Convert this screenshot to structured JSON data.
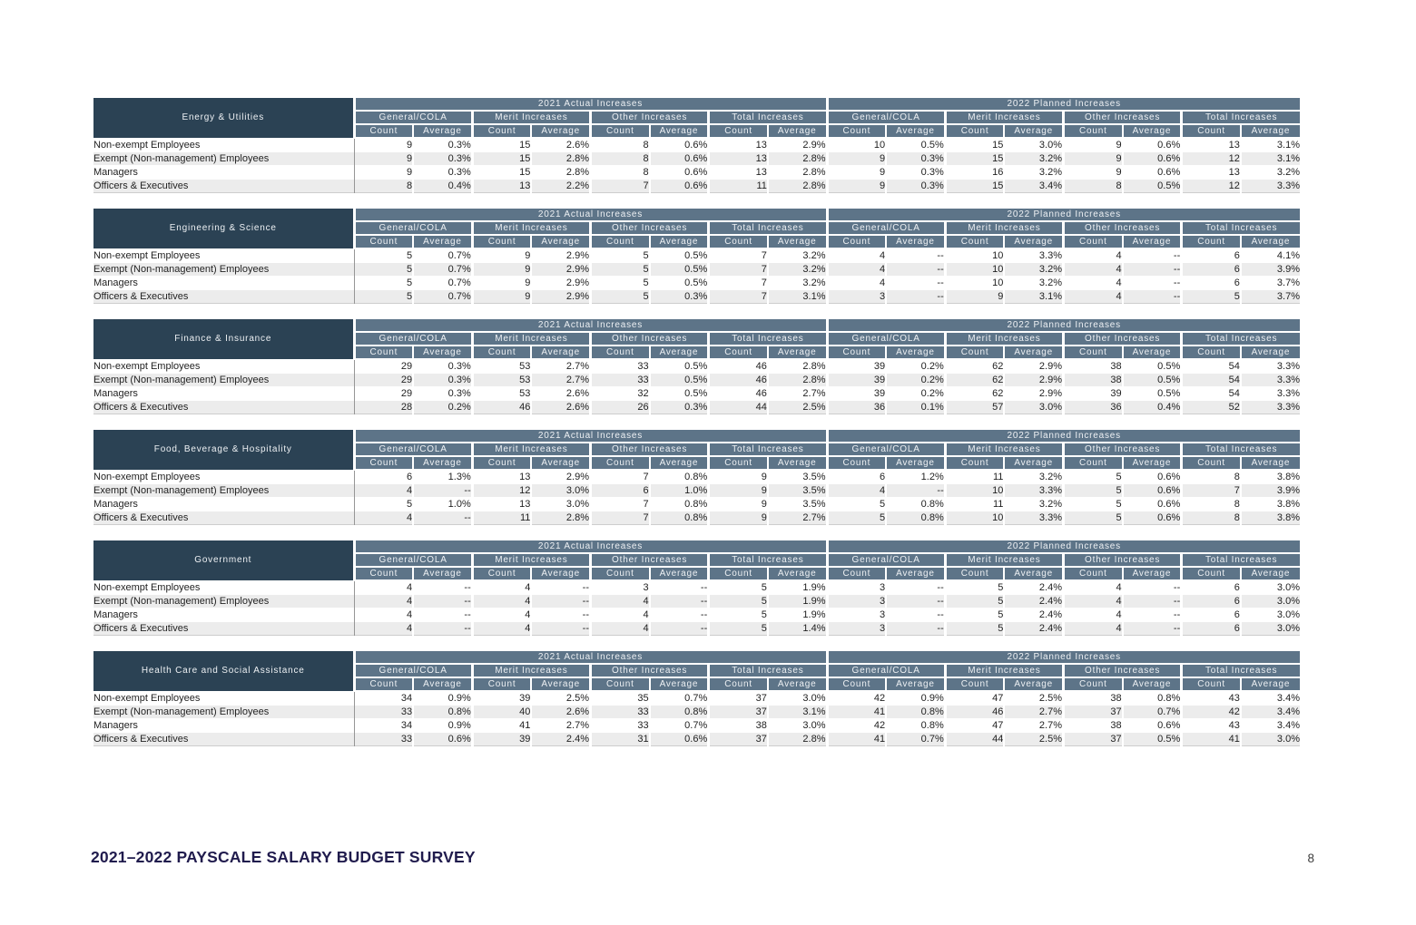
{
  "colors": {
    "industry_header_bg": "#2b4254",
    "column_header_bg": "#5d7488",
    "stripe_row_bg": "#ececec",
    "footer_title_color": "#201b4d"
  },
  "header_labels": {
    "year_groups": [
      "2021 Actual Increases",
      "2022 Planned Increases"
    ],
    "increase_groups": [
      "General/COLA",
      "Merit Increases",
      "Other Increases",
      "Total Increases"
    ],
    "metrics": [
      "Count",
      "Average"
    ]
  },
  "row_labels": [
    "Non-exempt Employees",
    "Exempt (Non-management) Employees",
    "Managers",
    "Officers & Executives"
  ],
  "tables": [
    {
      "industry": "Energy & Utilities",
      "rows": [
        [
          "9",
          "0.3%",
          "15",
          "2.6%",
          "8",
          "0.6%",
          "13",
          "2.9%",
          "10",
          "0.5%",
          "15",
          "3.0%",
          "9",
          "0.6%",
          "13",
          "3.1%"
        ],
        [
          "9",
          "0.3%",
          "15",
          "2.8%",
          "8",
          "0.6%",
          "13",
          "2.8%",
          "9",
          "0.3%",
          "15",
          "3.2%",
          "9",
          "0.6%",
          "12",
          "3.1%"
        ],
        [
          "9",
          "0.3%",
          "15",
          "2.8%",
          "8",
          "0.6%",
          "13",
          "2.8%",
          "9",
          "0.3%",
          "16",
          "3.2%",
          "9",
          "0.6%",
          "13",
          "3.2%"
        ],
        [
          "8",
          "0.4%",
          "13",
          "2.2%",
          "7",
          "0.6%",
          "11",
          "2.8%",
          "9",
          "0.3%",
          "15",
          "3.4%",
          "8",
          "0.5%",
          "12",
          "3.3%"
        ]
      ]
    },
    {
      "industry": "Engineering & Science",
      "rows": [
        [
          "5",
          "0.7%",
          "9",
          "2.9%",
          "5",
          "0.5%",
          "7",
          "3.2%",
          "4",
          "--",
          "10",
          "3.3%",
          "4",
          "--",
          "6",
          "4.1%"
        ],
        [
          "5",
          "0.7%",
          "9",
          "2.9%",
          "5",
          "0.5%",
          "7",
          "3.2%",
          "4",
          "--",
          "10",
          "3.2%",
          "4",
          "--",
          "6",
          "3.9%"
        ],
        [
          "5",
          "0.7%",
          "9",
          "2.9%",
          "5",
          "0.5%",
          "7",
          "3.2%",
          "4",
          "--",
          "10",
          "3.2%",
          "4",
          "--",
          "6",
          "3.7%"
        ],
        [
          "5",
          "0.7%",
          "9",
          "2.9%",
          "5",
          "0.3%",
          "7",
          "3.1%",
          "3",
          "--",
          "9",
          "3.1%",
          "4",
          "--",
          "5",
          "3.7%"
        ]
      ]
    },
    {
      "industry": "Finance & Insurance",
      "rows": [
        [
          "29",
          "0.3%",
          "53",
          "2.7%",
          "33",
          "0.5%",
          "46",
          "2.8%",
          "39",
          "0.2%",
          "62",
          "2.9%",
          "38",
          "0.5%",
          "54",
          "3.3%"
        ],
        [
          "29",
          "0.3%",
          "53",
          "2.7%",
          "33",
          "0.5%",
          "46",
          "2.8%",
          "39",
          "0.2%",
          "62",
          "2.9%",
          "38",
          "0.5%",
          "54",
          "3.3%"
        ],
        [
          "29",
          "0.3%",
          "53",
          "2.6%",
          "32",
          "0.5%",
          "46",
          "2.7%",
          "39",
          "0.2%",
          "62",
          "2.9%",
          "39",
          "0.5%",
          "54",
          "3.3%"
        ],
        [
          "28",
          "0.2%",
          "46",
          "2.6%",
          "26",
          "0.3%",
          "44",
          "2.5%",
          "36",
          "0.1%",
          "57",
          "3.0%",
          "36",
          "0.4%",
          "52",
          "3.3%"
        ]
      ]
    },
    {
      "industry": "Food, Beverage & Hospitality",
      "rows": [
        [
          "6",
          "1.3%",
          "13",
          "2.9%",
          "7",
          "0.8%",
          "9",
          "3.5%",
          "6",
          "1.2%",
          "11",
          "3.2%",
          "5",
          "0.6%",
          "8",
          "3.8%"
        ],
        [
          "4",
          "--",
          "12",
          "3.0%",
          "6",
          "1.0%",
          "9",
          "3.5%",
          "4",
          "--",
          "10",
          "3.3%",
          "5",
          "0.6%",
          "7",
          "3.9%"
        ],
        [
          "5",
          "1.0%",
          "13",
          "3.0%",
          "7",
          "0.8%",
          "9",
          "3.5%",
          "5",
          "0.8%",
          "11",
          "3.2%",
          "5",
          "0.6%",
          "8",
          "3.8%"
        ],
        [
          "4",
          "--",
          "11",
          "2.8%",
          "7",
          "0.8%",
          "9",
          "2.7%",
          "5",
          "0.8%",
          "10",
          "3.3%",
          "5",
          "0.6%",
          "8",
          "3.8%"
        ]
      ]
    },
    {
      "industry": "Government",
      "rows": [
        [
          "4",
          "--",
          "4",
          "--",
          "3",
          "--",
          "5",
          "1.9%",
          "3",
          "--",
          "5",
          "2.4%",
          "4",
          "--",
          "6",
          "3.0%"
        ],
        [
          "4",
          "--",
          "4",
          "--",
          "4",
          "--",
          "5",
          "1.9%",
          "3",
          "--",
          "5",
          "2.4%",
          "4",
          "--",
          "6",
          "3.0%"
        ],
        [
          "4",
          "--",
          "4",
          "--",
          "4",
          "--",
          "5",
          "1.9%",
          "3",
          "--",
          "5",
          "2.4%",
          "4",
          "--",
          "6",
          "3.0%"
        ],
        [
          "4",
          "--",
          "4",
          "--",
          "4",
          "--",
          "5",
          "1.4%",
          "3",
          "--",
          "5",
          "2.4%",
          "4",
          "--",
          "6",
          "3.0%"
        ]
      ]
    },
    {
      "industry": "Health Care and Social Assistance",
      "rows": [
        [
          "34",
          "0.9%",
          "39",
          "2.5%",
          "35",
          "0.7%",
          "37",
          "3.0%",
          "42",
          "0.9%",
          "47",
          "2.5%",
          "38",
          "0.8%",
          "43",
          "3.4%"
        ],
        [
          "33",
          "0.8%",
          "40",
          "2.6%",
          "33",
          "0.8%",
          "37",
          "3.1%",
          "41",
          "0.8%",
          "46",
          "2.7%",
          "37",
          "0.7%",
          "42",
          "3.4%"
        ],
        [
          "34",
          "0.9%",
          "41",
          "2.7%",
          "33",
          "0.7%",
          "38",
          "3.0%",
          "42",
          "0.8%",
          "47",
          "2.7%",
          "38",
          "0.6%",
          "43",
          "3.4%"
        ],
        [
          "33",
          "0.6%",
          "39",
          "2.4%",
          "31",
          "0.6%",
          "37",
          "2.8%",
          "41",
          "0.7%",
          "44",
          "2.5%",
          "37",
          "0.5%",
          "41",
          "3.0%"
        ]
      ]
    }
  ],
  "footer": {
    "title": "2021–2022 PAYSCALE SALARY BUDGET SURVEY",
    "page_number": "8"
  }
}
